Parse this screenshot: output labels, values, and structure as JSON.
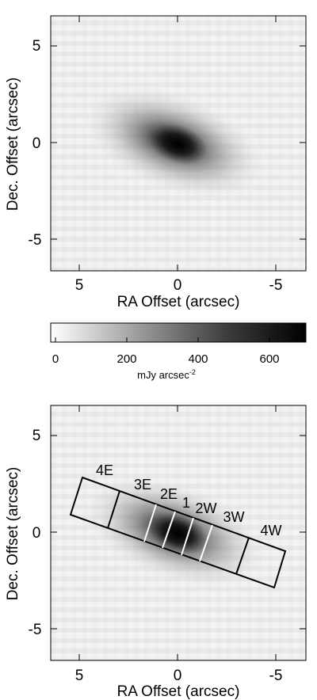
{
  "figure": {
    "top_panel": {
      "xlabel": "RA Offset (arcsec)",
      "ylabel": "Dec. Offset (arcsec)",
      "x_ticks": [
        "5",
        "0",
        "-5"
      ],
      "y_ticks": [
        "5",
        "0",
        "-5"
      ]
    },
    "colorbar": {
      "ticks": [
        "0",
        "200",
        "400",
        "600"
      ],
      "unit_main": "mJy arcsec",
      "unit_sup": "-2"
    },
    "bottom_panel": {
      "xlabel": "RA Offset (arcsec)",
      "ylabel": "Dec. Offset (arcsec)",
      "x_ticks": [
        "5",
        "0",
        "-5"
      ],
      "y_ticks": [
        "5",
        "0",
        "-5"
      ],
      "region_labels": [
        "4E",
        "3E",
        "2E",
        "1",
        "2W",
        "3W",
        "4W"
      ]
    }
  },
  "chart_data": [
    {
      "type": "heatmap",
      "title": "",
      "xlabel": "RA Offset (arcsec)",
      "ylabel": "Dec. Offset (arcsec)",
      "xlim": [
        6.5,
        -6.5
      ],
      "ylim": [
        -6.5,
        6.5
      ],
      "x_ticks": [
        5,
        0,
        -5
      ],
      "y_ticks": [
        5,
        0,
        -5
      ],
      "colormap": "grayscale (white = 0, black = max)",
      "source_peak_offset": [
        0,
        0
      ]
    },
    {
      "type": "colorbar",
      "range": [
        0,
        720
      ],
      "ticks": [
        0,
        200,
        400,
        600
      ],
      "unit": "mJy arcsec^-2"
    },
    {
      "type": "heatmap",
      "title": "",
      "xlabel": "RA Offset (arcsec)",
      "ylabel": "Dec. Offset (arcsec)",
      "xlim": [
        6.5,
        -6.5
      ],
      "ylim": [
        -6.5,
        6.5
      ],
      "x_ticks": [
        5,
        0,
        -5
      ],
      "y_ticks": [
        5,
        0,
        -5
      ],
      "overlay": "slit divided into extraction regions",
      "regions": [
        "4E",
        "3E",
        "2E",
        "1",
        "2W",
        "3W",
        "4W"
      ]
    }
  ]
}
